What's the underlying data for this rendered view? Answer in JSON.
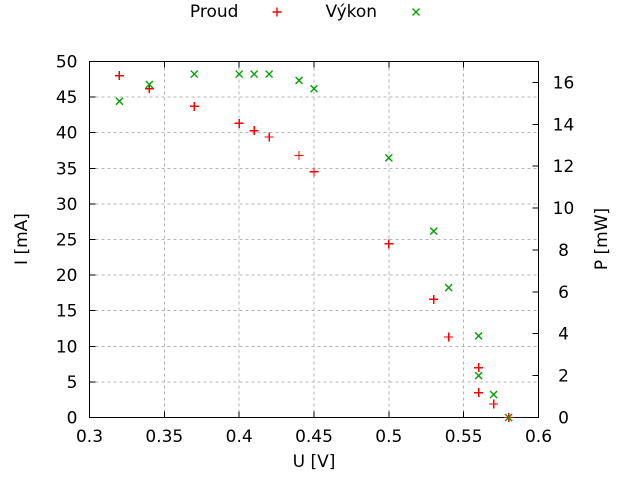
{
  "chart_data": {
    "type": "scatter",
    "title": "",
    "xlabel": "U [V]",
    "y1label": "I [mA]",
    "y2label": "P [mW]",
    "xlim": [
      0.3,
      0.6
    ],
    "y1lim": [
      0,
      50
    ],
    "y2lim": [
      0,
      17
    ],
    "grid": true,
    "legend_position": "top-center-horizontal",
    "xticks": [
      {
        "v": 0.3,
        "label": "0.3"
      },
      {
        "v": 0.35,
        "label": "0.35"
      },
      {
        "v": 0.4,
        "label": "0.4"
      },
      {
        "v": 0.45,
        "label": "0.45"
      },
      {
        "v": 0.5,
        "label": "0.5"
      },
      {
        "v": 0.55,
        "label": "0.55"
      },
      {
        "v": 0.6,
        "label": "0.6"
      }
    ],
    "y1ticks": [
      {
        "v": 0,
        "label": "0"
      },
      {
        "v": 5,
        "label": "5"
      },
      {
        "v": 10,
        "label": "10"
      },
      {
        "v": 15,
        "label": "15"
      },
      {
        "v": 20,
        "label": "20"
      },
      {
        "v": 25,
        "label": "25"
      },
      {
        "v": 30,
        "label": "30"
      },
      {
        "v": 35,
        "label": "35"
      },
      {
        "v": 40,
        "label": "40"
      },
      {
        "v": 45,
        "label": "45"
      },
      {
        "v": 50,
        "label": "50"
      }
    ],
    "y2ticks": [
      {
        "v": 0,
        "label": "0"
      },
      {
        "v": 2,
        "label": "2"
      },
      {
        "v": 4,
        "label": "4"
      },
      {
        "v": 6,
        "label": "6"
      },
      {
        "v": 8,
        "label": "8"
      },
      {
        "v": 10,
        "label": "10"
      },
      {
        "v": 12,
        "label": "12"
      },
      {
        "v": 14,
        "label": "14"
      },
      {
        "v": 16,
        "label": "16"
      }
    ],
    "series": [
      {
        "name": "Proud",
        "axis": "y1",
        "marker": "plus",
        "color": "#ff0000",
        "points": [
          [
            0.32,
            48.0
          ],
          [
            0.34,
            46.2
          ],
          [
            0.37,
            43.7
          ],
          [
            0.4,
            41.3
          ],
          [
            0.41,
            40.3
          ],
          [
            0.42,
            39.4
          ],
          [
            0.44,
            36.8
          ],
          [
            0.45,
            34.5
          ],
          [
            0.5,
            24.4
          ],
          [
            0.53,
            16.6
          ],
          [
            0.54,
            11.3
          ],
          [
            0.56,
            7.0
          ],
          [
            0.56,
            3.5
          ],
          [
            0.57,
            1.9
          ],
          [
            0.58,
            0.0
          ]
        ]
      },
      {
        "name": "Výkon",
        "axis": "y2",
        "marker": "cross",
        "color": "#00a000",
        "points": [
          [
            0.32,
            15.1
          ],
          [
            0.34,
            15.9
          ],
          [
            0.37,
            16.4
          ],
          [
            0.4,
            16.4
          ],
          [
            0.41,
            16.4
          ],
          [
            0.42,
            16.4
          ],
          [
            0.44,
            16.1
          ],
          [
            0.45,
            15.7
          ],
          [
            0.5,
            12.4
          ],
          [
            0.53,
            8.9
          ],
          [
            0.54,
            6.2
          ],
          [
            0.56,
            3.9
          ],
          [
            0.56,
            2.0
          ],
          [
            0.57,
            1.1
          ],
          [
            0.58,
            0.0
          ]
        ]
      }
    ],
    "colors": {
      "background": "#ffffff",
      "grid": "#b4b4b4",
      "border": "#000000",
      "text": "#000000",
      "series_proud": "#ff0000",
      "series_vykon": "#00a000"
    }
  }
}
